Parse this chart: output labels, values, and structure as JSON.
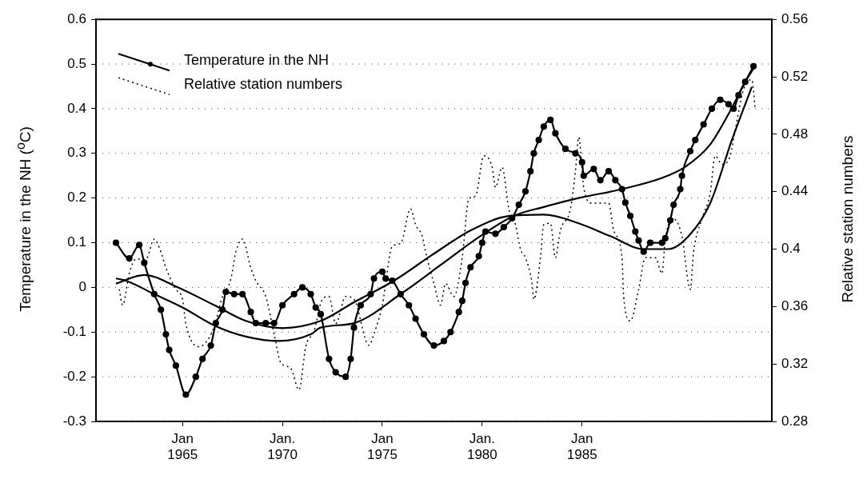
{
  "chart_data": {
    "type": "line",
    "ylabel": "Temperature in the NH ($^{o}$C)",
    "y2label": "Relative station numbers",
    "xlim": [
      "1960-09",
      "1994-07"
    ],
    "xticks": [
      {
        "value": "1965-01",
        "label": "Jan\n1965"
      },
      {
        "value": "1970-01",
        "label": "Jan.\n1970"
      },
      {
        "value": "1975-01",
        "label": "Jan\n1975"
      },
      {
        "value": "1980-01",
        "label": "Jan.\n1980"
      },
      {
        "value": "1985-01",
        "label": "Jan\n1985"
      }
    ],
    "ylim": [
      -0.3,
      0.6
    ],
    "yticks": [
      -0.3,
      -0.2,
      -0.1,
      0,
      0.1,
      0.2,
      0.3,
      0.4,
      0.5,
      0.6
    ],
    "y2lim": [
      0.28,
      0.56
    ],
    "y2ticks": [
      0.28,
      0.32,
      0.36,
      0.4,
      0.44,
      0.48,
      0.52,
      0.56
    ],
    "grid": "y",
    "legend": "top left",
    "series": [
      {
        "name": "Temperature in the NH",
        "color": "#000000",
        "marker": "circle",
        "line_style": "solid",
        "x": [
          "1961-09",
          "1962-05",
          "1962-11",
          "1963-02",
          "1963-08",
          "1963-12",
          "1964-03",
          "1964-05",
          "1964-09",
          "1965-03",
          "1965-09",
          "1966-01",
          "1966-06",
          "1966-09",
          "1967-01",
          "1967-03",
          "1967-08",
          "1968-01",
          "1968-06",
          "1968-09",
          "1969-03",
          "1969-08",
          "1970-01",
          "1970-08",
          "1971-01",
          "1971-06",
          "1971-09",
          "1971-12",
          "1972-05",
          "1972-09",
          "1973-03",
          "1973-06",
          "1973-08",
          "1973-12",
          "1974-06",
          "1974-08",
          "1975-01",
          "1975-03",
          "1975-07",
          "1975-12",
          "1976-05",
          "1976-09",
          "1977-02",
          "1977-08",
          "1978-02",
          "1978-06",
          "1978-11",
          "1979-01",
          "1979-03",
          "1979-06",
          "1979-11",
          "1980-01",
          "1980-03",
          "1980-09",
          "1981-02",
          "1981-07",
          "1981-11",
          "1982-03",
          "1982-06",
          "1982-08",
          "1982-11",
          "1983-02",
          "1983-06",
          "1983-09",
          "1984-03",
          "1984-09",
          "1985-01",
          "1985-02",
          "1985-08",
          "1985-12",
          "1986-05",
          "1986-09",
          "1987-01",
          "1987-03",
          "1987-06",
          "1987-09",
          "1987-11",
          "1988-02",
          "1988-06",
          "1989-01",
          "1989-03",
          "1989-06",
          "1989-08",
          "1989-12",
          "1990-01",
          "1990-06",
          "1990-09",
          "1991-02",
          "1991-07",
          "1991-12",
          "1992-05",
          "1992-08",
          "1992-11",
          "1993-03",
          "1993-08"
        ],
        "values": [
          0.1,
          0.065,
          0.095,
          0.055,
          -0.015,
          -0.05,
          -0.105,
          -0.14,
          -0.175,
          -0.24,
          -0.2,
          -0.16,
          -0.13,
          -0.08,
          -0.05,
          -0.01,
          -0.015,
          -0.015,
          -0.055,
          -0.08,
          -0.08,
          -0.08,
          -0.04,
          -0.015,
          0,
          -0.015,
          -0.045,
          -0.06,
          -0.16,
          -0.19,
          -0.2,
          -0.16,
          -0.09,
          -0.04,
          -0.015,
          0.02,
          0.035,
          0.02,
          0.015,
          -0.015,
          -0.04,
          -0.07,
          -0.105,
          -0.13,
          -0.12,
          -0.1,
          -0.055,
          -0.03,
          0.01,
          0.045,
          0.07,
          0.1,
          0.125,
          0.12,
          0.135,
          0.155,
          0.185,
          0.215,
          0.26,
          0.3,
          0.33,
          0.36,
          0.375,
          0.345,
          0.31,
          0.3,
          0.28,
          0.25,
          0.265,
          0.24,
          0.26,
          0.24,
          0.22,
          0.19,
          0.16,
          0.125,
          0.105,
          0.08,
          0.1,
          0.1,
          0.11,
          0.15,
          0.185,
          0.22,
          0.25,
          0.305,
          0.33,
          0.365,
          0.4,
          0.42,
          0.41,
          0.4,
          0.43,
          0.46,
          0.495
        ]
      },
      {
        "name": "Relative station numbers",
        "color": "#000000",
        "marker": "none",
        "line_style": "dotted",
        "axis": "y2",
        "x": [
          "1961-11",
          "1962-01",
          "1962-05",
          "1962-09",
          "1963-03",
          "1963-08",
          "1963-12",
          "1964-03",
          "1964-09",
          "1965-01",
          "1965-03",
          "1965-11",
          "1966-03",
          "1966-08",
          "1967-01",
          "1967-06",
          "1967-09",
          "1968-01",
          "1968-06",
          "1968-09",
          "1969-03",
          "1969-08",
          "1969-12",
          "1970-06",
          "1970-11",
          "1971-03",
          "1971-08",
          "1972-01",
          "1972-05",
          "1972-09",
          "1973-03",
          "1973-08",
          "1974-05",
          "1974-08",
          "1975-01",
          "1975-07",
          "1975-12",
          "1976-06",
          "1976-09",
          "1977-01",
          "1977-03",
          "1977-08",
          "1977-12",
          "1978-03",
          "1978-08",
          "1979-01",
          "1979-05",
          "1979-09",
          "1980-02",
          "1980-07",
          "1980-09",
          "1981-01",
          "1981-05",
          "1981-09",
          "1981-12",
          "1982-03",
          "1982-07",
          "1982-08",
          "1982-12",
          "1983-02",
          "1983-06",
          "1983-09",
          "1983-12",
          "1984-06",
          "1984-09",
          "1984-11",
          "1985-02",
          "1985-07",
          "1986-05",
          "1986-08",
          "1987-01",
          "1987-02",
          "1987-06",
          "1987-11",
          "1988-03",
          "1988-09",
          "1989-01",
          "1989-03",
          "1989-08",
          "1990-01",
          "1990-06",
          "1990-08",
          "1991-01",
          "1991-06",
          "1991-09",
          "1992-01",
          "1992-06",
          "1992-09",
          "1993-02",
          "1993-07",
          "1993-09"
        ],
        "values": [
          0.372,
          0.361,
          0.383,
          0.393,
          0.393,
          0.407,
          0.398,
          0.387,
          0.372,
          0.365,
          0.348,
          0.332,
          0.335,
          0.346,
          0.367,
          0.379,
          0.398,
          0.407,
          0.387,
          0.378,
          0.367,
          0.341,
          0.321,
          0.317,
          0.302,
          0.332,
          0.343,
          0.365,
          0.367,
          0.348,
          0.367,
          0.365,
          0.333,
          0.341,
          0.361,
          0.402,
          0.404,
          0.428,
          0.417,
          0.409,
          0.398,
          0.376,
          0.361,
          0.376,
          0.367,
          0.394,
          0.435,
          0.437,
          0.465,
          0.457,
          0.443,
          0.457,
          0.428,
          0.417,
          0.4,
          0.394,
          0.376,
          0.365,
          0.394,
          0.417,
          0.418,
          0.394,
          0.413,
          0.428,
          0.454,
          0.478,
          0.443,
          0.432,
          0.432,
          0.413,
          0.394,
          0.367,
          0.35,
          0.372,
          0.394,
          0.394,
          0.383,
          0.407,
          0.421,
          0.409,
          0.372,
          0.398,
          0.421,
          0.439,
          0.465,
          0.459,
          0.465,
          0.483,
          0.511,
          0.518,
          0.498
        ]
      },
      {
        "color": "#000000",
        "marker": "none",
        "line_style": "solid",
        "x": [
          "1961-09",
          "1962-03",
          "1963-08",
          "1965-01",
          "1966-08",
          "1968-03",
          "1969-11",
          "1971-06",
          "1971-12",
          "1973-08",
          "1975-12",
          "1977-12",
          "1979-12",
          "1981-08",
          "1983-02",
          "1984-11",
          "1987-01",
          "1989-01",
          "1990-03",
          "1991-06",
          "1992-06",
          "1993-03",
          "1993-08"
        ],
        "values": [
          0.02,
          0.015,
          -0.015,
          -0.045,
          -0.085,
          -0.11,
          -0.12,
          -0.105,
          -0.09,
          -0.08,
          -0.015,
          0.05,
          0.115,
          0.16,
          0.18,
          0.2,
          0.22,
          0.245,
          0.27,
          0.32,
          0.395,
          0.46,
          0.49
        ]
      },
      {
        "color": "#000000",
        "marker": "none",
        "line_style": "solid",
        "axis": "y2",
        "x": [
          "1961-09",
          "1963-02",
          "1964-09",
          "1966-08",
          "1968-03",
          "1970-01",
          "1971-12",
          "1973-08",
          "1975-08",
          "1977-07",
          "1979-06",
          "1981-05",
          "1983-02",
          "1984-11",
          "1986-06",
          "1988-02",
          "1989-05",
          "1990-05",
          "1991-06",
          "1992-07",
          "1993-07"
        ],
        "values": [
          0.376,
          0.382,
          0.374,
          0.361,
          0.35,
          0.345,
          0.35,
          0.363,
          0.378,
          0.396,
          0.413,
          0.423,
          0.424,
          0.418,
          0.409,
          0.4,
          0.4,
          0.409,
          0.432,
          0.476,
          0.513
        ]
      }
    ]
  }
}
